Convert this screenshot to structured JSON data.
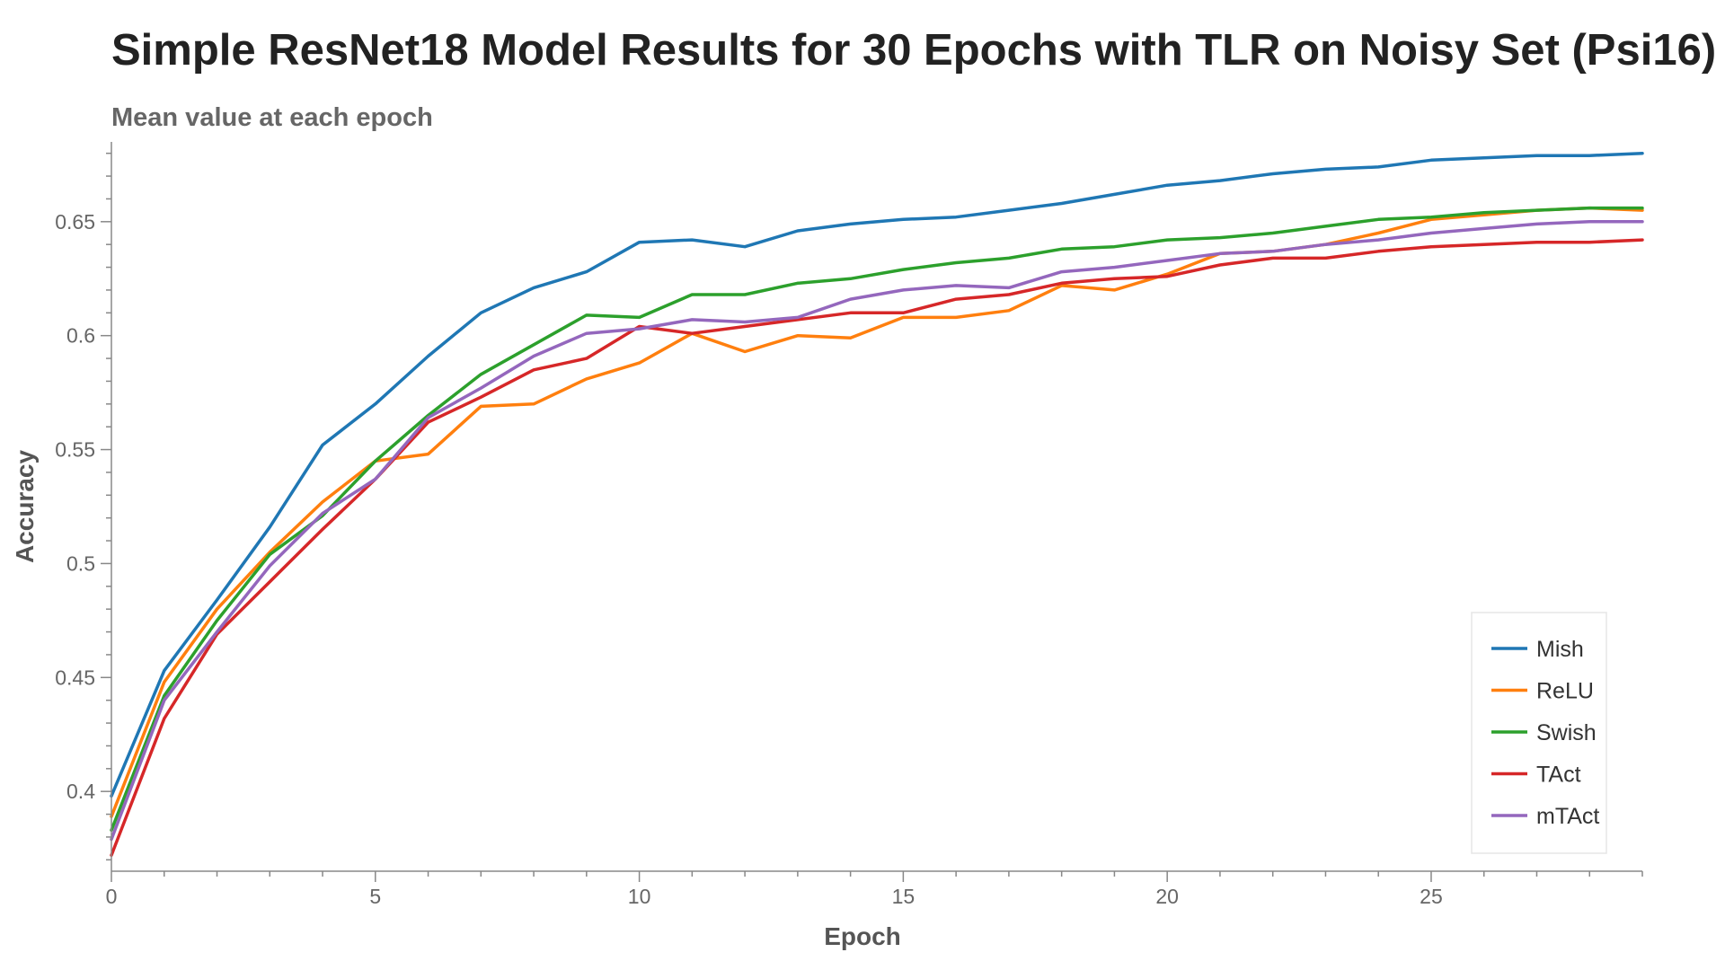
{
  "chart_data": {
    "type": "line",
    "title": "Simple ResNet18 Model Results for 30 Epochs with TLR on Noisy Set (Psi16)",
    "subtitle": "Mean value at each epoch",
    "xlabel": "Epoch",
    "ylabel": "Accuracy",
    "xlim": [
      0,
      29
    ],
    "ylim": [
      0.365,
      0.685
    ],
    "xticks": [
      0,
      5,
      10,
      15,
      20,
      25
    ],
    "yticks": [
      0.4,
      0.45,
      0.5,
      0.55,
      0.6,
      0.65
    ],
    "ytick_labels": [
      "0.4",
      "0.45",
      "0.5",
      "0.55",
      "0.6",
      "0.65"
    ],
    "grid": false,
    "legend_position": "bottom-right",
    "x": [
      0,
      1,
      2,
      3,
      4,
      5,
      6,
      7,
      8,
      9,
      10,
      11,
      12,
      13,
      14,
      15,
      16,
      17,
      18,
      19,
      20,
      21,
      22,
      23,
      24,
      25,
      26,
      27,
      28,
      29
    ],
    "series": [
      {
        "name": "Mish",
        "color": "#1f77b4",
        "values": [
          0.398,
          0.453,
          0.484,
          0.516,
          0.552,
          0.57,
          0.591,
          0.61,
          0.621,
          0.628,
          0.641,
          0.642,
          0.639,
          0.646,
          0.649,
          0.651,
          0.652,
          0.655,
          0.658,
          0.662,
          0.666,
          0.668,
          0.671,
          0.673,
          0.674,
          0.677,
          0.678,
          0.679,
          0.679,
          0.68
        ]
      },
      {
        "name": "ReLU",
        "color": "#ff7f0e",
        "values": [
          0.389,
          0.448,
          0.48,
          0.505,
          0.527,
          0.545,
          0.548,
          0.569,
          0.57,
          0.581,
          0.588,
          0.601,
          0.593,
          0.6,
          0.599,
          0.608,
          0.608,
          0.611,
          0.622,
          0.62,
          0.627,
          0.636,
          0.637,
          0.64,
          0.645,
          0.651,
          0.653,
          0.655,
          0.656,
          0.655
        ]
      },
      {
        "name": "Swish",
        "color": "#2ca02c",
        "values": [
          0.383,
          0.442,
          0.475,
          0.504,
          0.521,
          0.545,
          0.565,
          0.583,
          0.596,
          0.609,
          0.608,
          0.618,
          0.618,
          0.623,
          0.625,
          0.629,
          0.632,
          0.634,
          0.638,
          0.639,
          0.642,
          0.643,
          0.645,
          0.648,
          0.651,
          0.652,
          0.654,
          0.655,
          0.656,
          0.656
        ]
      },
      {
        "name": "TAct",
        "color": "#d62728",
        "values": [
          0.372,
          0.432,
          0.469,
          0.492,
          0.515,
          0.537,
          0.562,
          0.573,
          0.585,
          0.59,
          0.604,
          0.601,
          0.604,
          0.607,
          0.61,
          0.61,
          0.616,
          0.618,
          0.623,
          0.625,
          0.626,
          0.631,
          0.634,
          0.634,
          0.637,
          0.639,
          0.64,
          0.641,
          0.641,
          0.642
        ]
      },
      {
        "name": "mTAct",
        "color": "#9467bd",
        "values": [
          0.379,
          0.44,
          0.47,
          0.499,
          0.522,
          0.537,
          0.564,
          0.577,
          0.591,
          0.601,
          0.603,
          0.607,
          0.606,
          0.608,
          0.616,
          0.62,
          0.622,
          0.621,
          0.628,
          0.63,
          0.633,
          0.636,
          0.637,
          0.64,
          0.642,
          0.645,
          0.647,
          0.649,
          0.65,
          0.65
        ]
      }
    ]
  }
}
